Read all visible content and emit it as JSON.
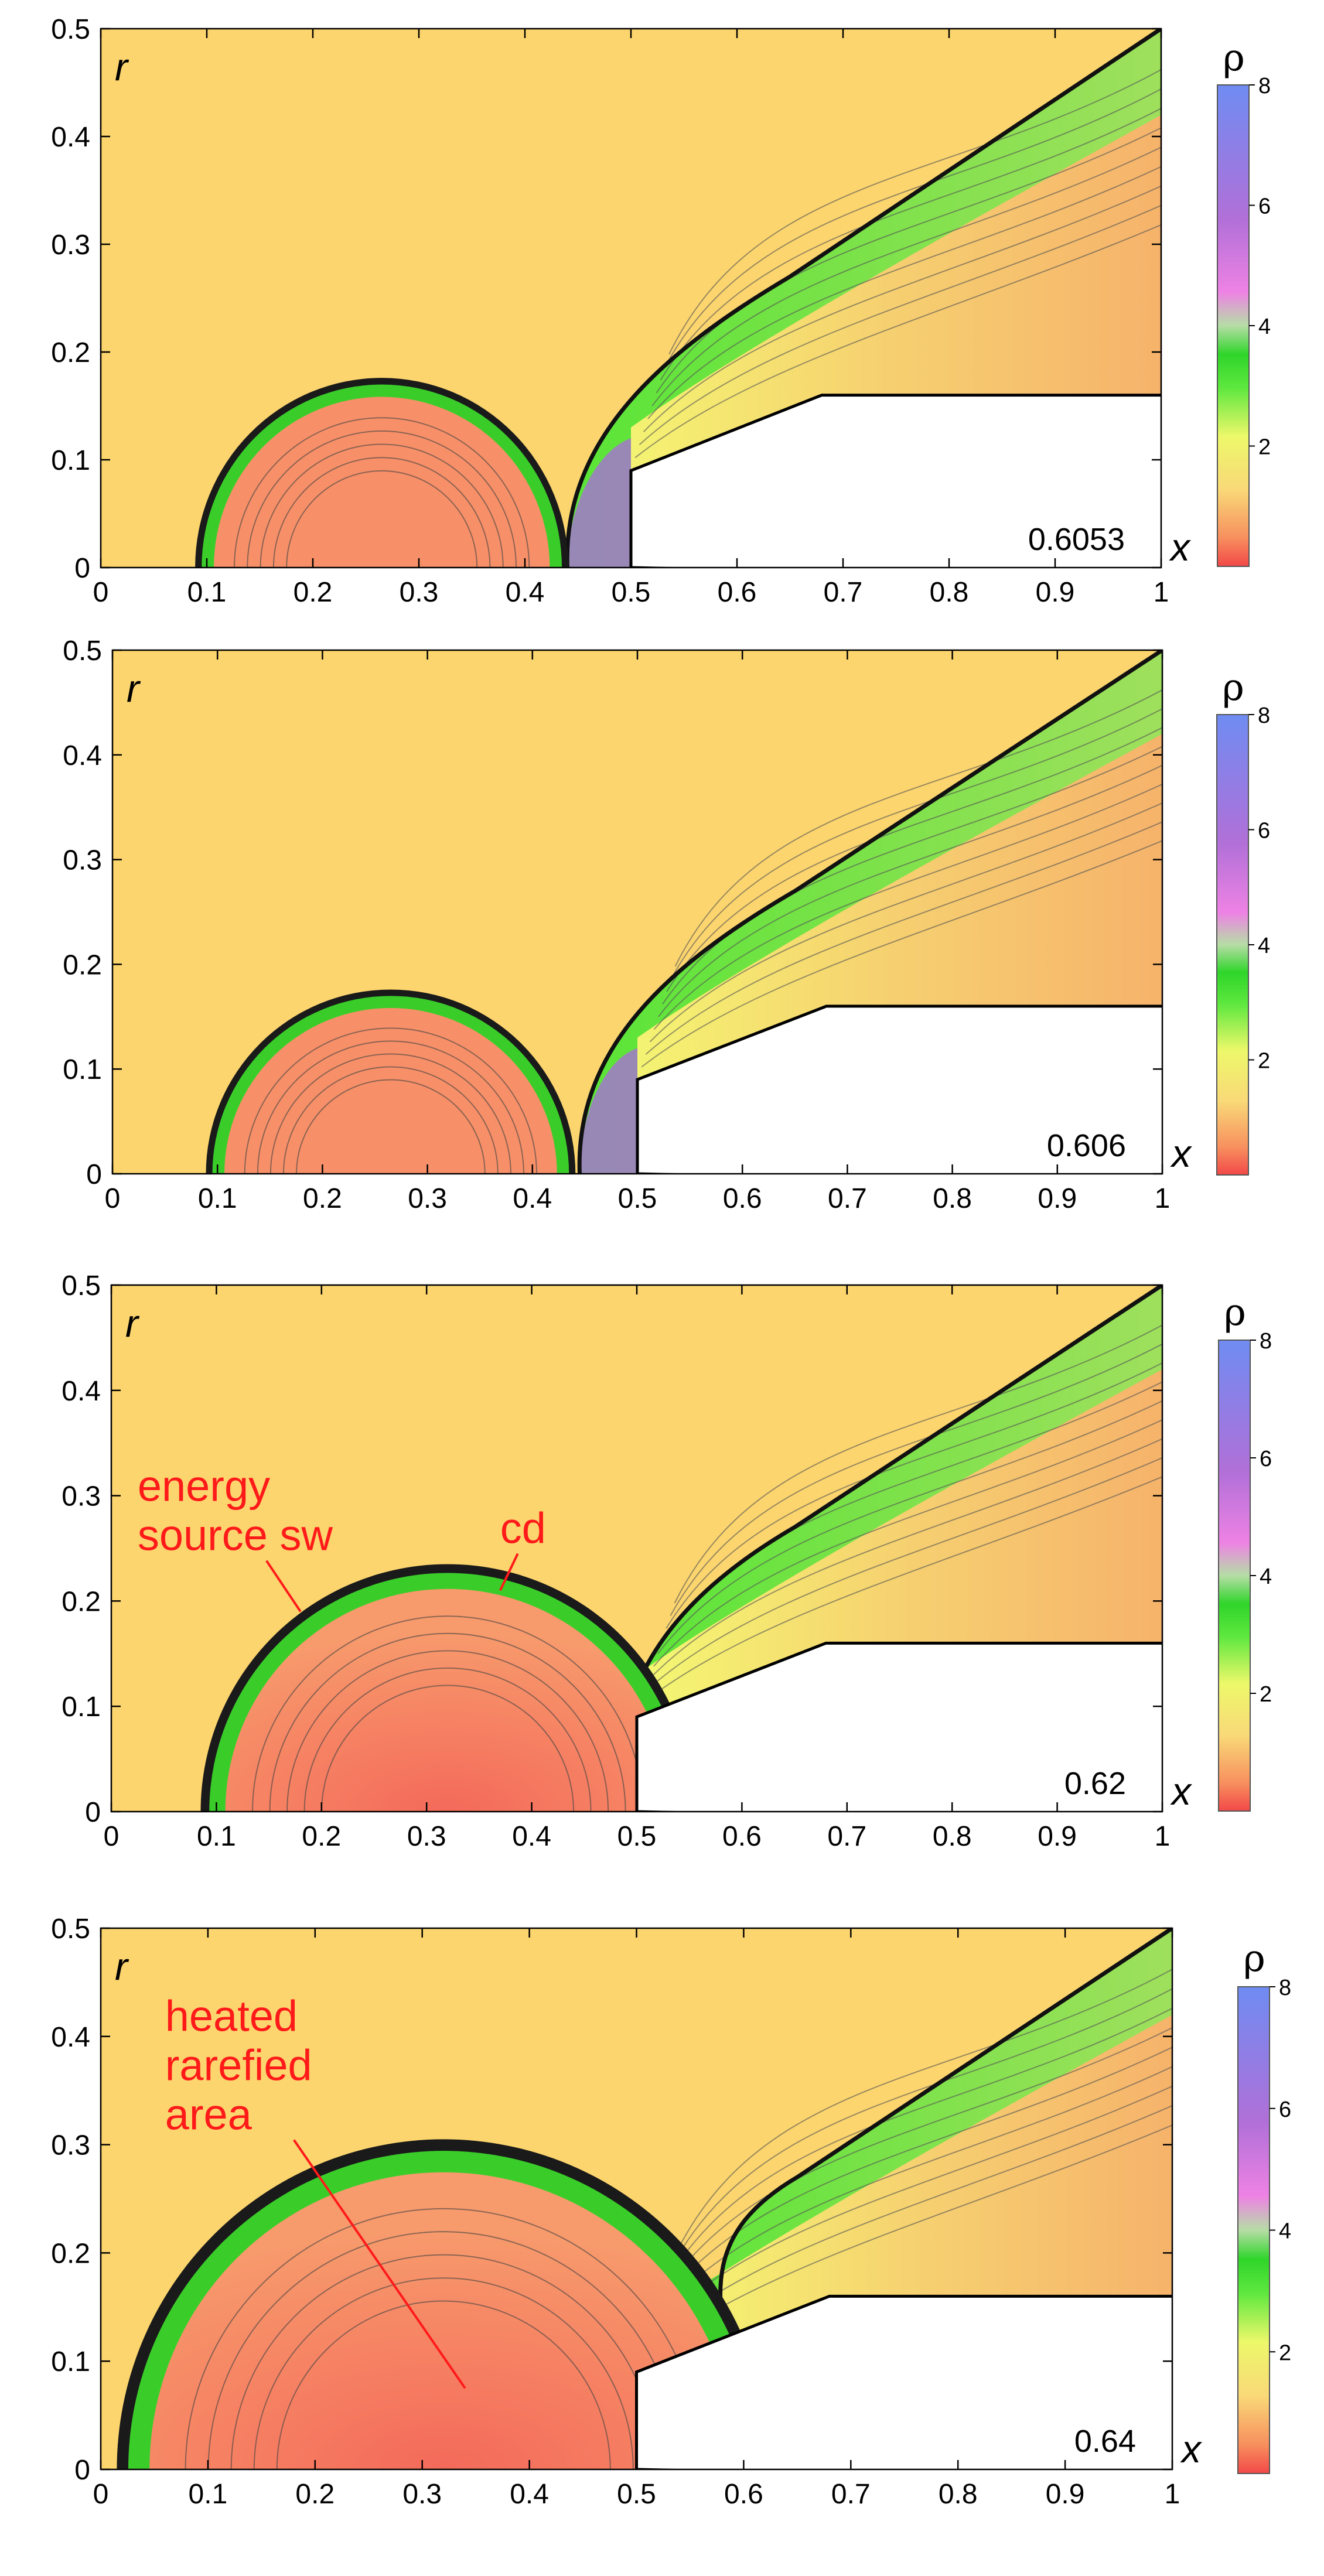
{
  "figure": {
    "x_axis_letter": "x",
    "y_axis_letter": "r",
    "colorbar_label": "ρ",
    "colorbar_ticks": [
      "2",
      "4",
      "6",
      "8"
    ],
    "x_ticks": [
      "0",
      "0.1",
      "0.2",
      "0.3",
      "0.4",
      "0.5",
      "0.6",
      "0.7",
      "0.8",
      "0.9",
      "1"
    ],
    "y_ticks": [
      "0",
      "0.1",
      "0.2",
      "0.3",
      "0.4",
      "0.5"
    ],
    "colors": {
      "free_stream": "#fcd56e",
      "heated": "#f79068",
      "green": "#3ee12c",
      "yellow": "#f4fb72",
      "purple": "#a770d6",
      "blue": "#6b86ee",
      "red": "#ff1a1a"
    }
  },
  "chart_data": [
    {
      "type": "heatmap",
      "field": "density",
      "time": "0.6053",
      "xlim": [
        0,
        1
      ],
      "ylim": [
        0,
        0.5
      ],
      "source_center": [
        0.265,
        0
      ],
      "source_radius": 0.176,
      "bow_shock_at": 0.44,
      "annotations": []
    },
    {
      "type": "heatmap",
      "field": "density",
      "time": "0.606",
      "xlim": [
        0,
        1
      ],
      "ylim": [
        0,
        0.5
      ],
      "source_center": [
        0.265,
        0
      ],
      "source_radius": 0.176,
      "bow_shock_at": 0.445,
      "annotations": []
    },
    {
      "type": "heatmap",
      "field": "density",
      "time": "0.62",
      "xlim": [
        0,
        1
      ],
      "ylim": [
        0,
        0.5
      ],
      "source_center": [
        0.32,
        0
      ],
      "source_radius": 0.235,
      "bow_shock_at": 0.48,
      "annotations": [
        {
          "text": [
            "energy",
            "source sw"
          ],
          "label_at": [
            0.025,
            0.295
          ],
          "points_to": [
            0.18,
            0.19
          ]
        },
        {
          "text": [
            "cd"
          ],
          "label_at": [
            0.37,
            0.255
          ],
          "points_to": [
            0.37,
            0.21
          ]
        }
      ]
    },
    {
      "type": "heatmap",
      "field": "density",
      "time": "0.64",
      "xlim": [
        0,
        1
      ],
      "ylim": [
        0,
        0.5
      ],
      "source_center": [
        0.32,
        0
      ],
      "source_radius": 0.305,
      "bow_shock_at": 0.6,
      "annotations": [
        {
          "text": [
            "heated",
            "rarefied",
            "area"
          ],
          "label_at": [
            0.06,
            0.405
          ],
          "points_to": [
            0.34,
            0.075
          ]
        }
      ]
    }
  ],
  "body": {
    "nose_x": 0.5,
    "nose_r": 0.09,
    "shoulder_x": 0.68,
    "shoulder_r": 0.16,
    "end_x": 1.0
  }
}
